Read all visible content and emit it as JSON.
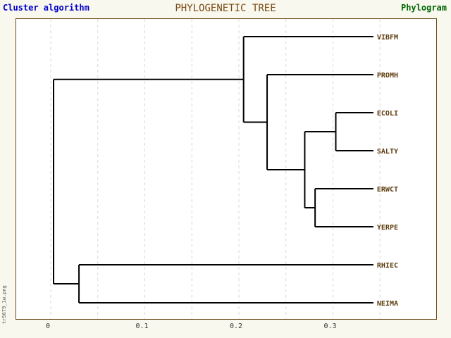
{
  "header": {
    "left": "Cluster algorithm",
    "center": "PHYLOGENETIC TREE",
    "right": "Phylogram",
    "left_color": "#0000cc",
    "center_color": "#7a4a14",
    "right_color": "#006600"
  },
  "side_label": "tr5679_1w.png",
  "leaf_color": "#5c3b0c",
  "axis": {
    "ticks": [
      "0",
      "0.1",
      "0.2",
      "0.3"
    ]
  },
  "tree": {
    "leaves": [
      "VIBFM",
      "PROMH",
      "ECOLI",
      "SALTY",
      "ERWCT",
      "YERPE",
      "RHIEC",
      "NEIMA"
    ],
    "root": "n_root",
    "nodes": {
      "n_root": {
        "x": 0.003,
        "children": [
          "n_a",
          "n_rn"
        ]
      },
      "n_a": {
        "x": 0.205,
        "children": [
          "VIBFM",
          "n_b"
        ]
      },
      "n_b": {
        "x": 0.23,
        "children": [
          "PROMH",
          "n_c"
        ]
      },
      "n_c": {
        "x": 0.27,
        "children": [
          "n_es",
          "n_ey"
        ]
      },
      "n_es": {
        "x": 0.303,
        "children": [
          "ECOLI",
          "SALTY"
        ]
      },
      "n_ey": {
        "x": 0.281,
        "children": [
          "ERWCT",
          "YERPE"
        ]
      },
      "n_rn": {
        "x": 0.03,
        "children": [
          "RHIEC",
          "NEIMA"
        ]
      }
    },
    "leaf_x": 0.343
  }
}
